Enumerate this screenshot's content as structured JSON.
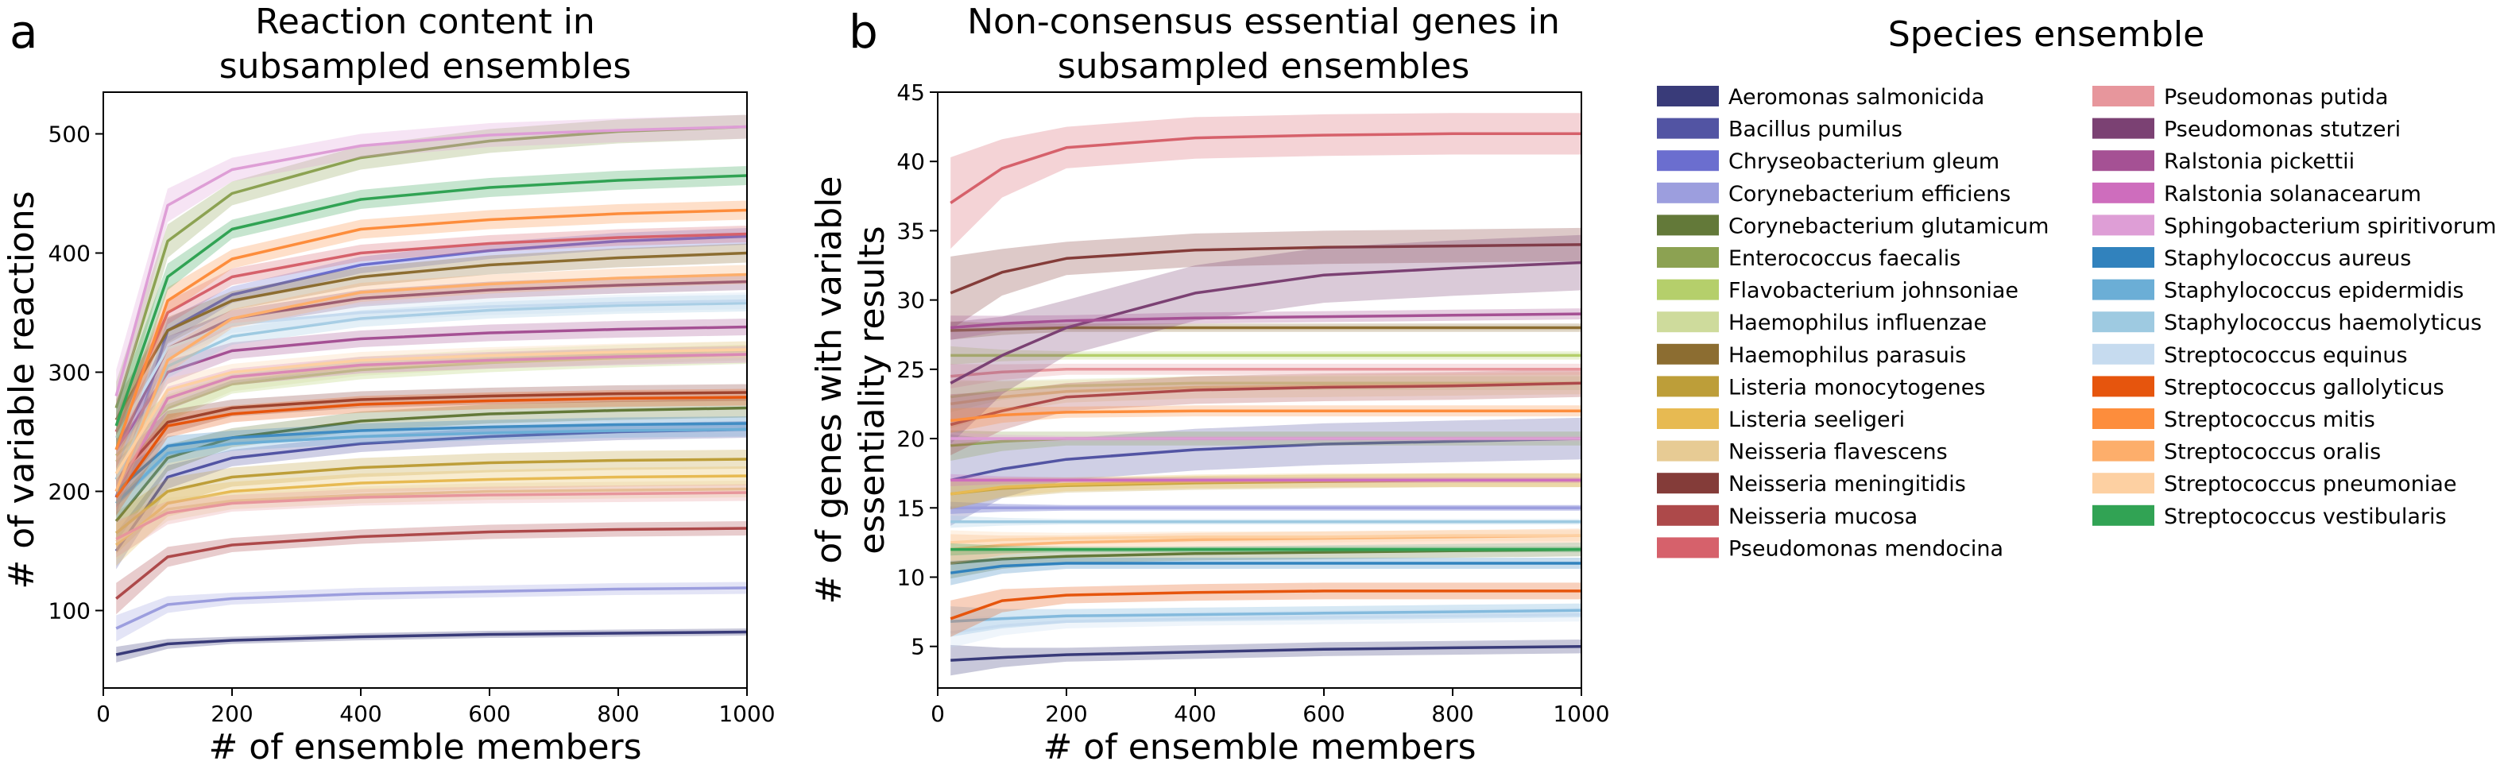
{
  "figure": {
    "legend_title": "Species ensemble"
  },
  "species": [
    {
      "name": "Aeromonas salmonicida",
      "color": "#393b79"
    },
    {
      "name": "Bacillus pumilus",
      "color": "#5254a3"
    },
    {
      "name": "Chryseobacterium gleum",
      "color": "#6b6ecf"
    },
    {
      "name": "Corynebacterium efficiens",
      "color": "#9c9ede"
    },
    {
      "name": "Corynebacterium glutamicum",
      "color": "#637939"
    },
    {
      "name": "Enterococcus faecalis",
      "color": "#8ca252"
    },
    {
      "name": "Flavobacterium johnsoniae",
      "color": "#b5cf6b"
    },
    {
      "name": "Haemophilus influenzae",
      "color": "#cedb9c"
    },
    {
      "name": "Haemophilus parasuis",
      "color": "#8c6d31"
    },
    {
      "name": "Listeria monocytogenes",
      "color": "#bd9e39"
    },
    {
      "name": "Listeria seeligeri",
      "color": "#e7ba52"
    },
    {
      "name": "Neisseria flavescens",
      "color": "#e7cb94"
    },
    {
      "name": "Neisseria meningitidis",
      "color": "#843c39"
    },
    {
      "name": "Neisseria mucosa",
      "color": "#ad494a"
    },
    {
      "name": "Pseudomonas mendocina",
      "color": "#d6616b"
    },
    {
      "name": "Pseudomonas putida",
      "color": "#e7969c"
    },
    {
      "name": "Pseudomonas stutzeri",
      "color": "#7b4173"
    },
    {
      "name": "Ralstonia pickettii",
      "color": "#a55194"
    },
    {
      "name": "Ralstonia solanacearum",
      "color": "#ce6dbd"
    },
    {
      "name": "Sphingobacterium spiritivorum",
      "color": "#de9ed6"
    },
    {
      "name": "Staphylococcus aureus",
      "color": "#3182bd"
    },
    {
      "name": "Staphylococcus epidermidis",
      "color": "#6baed6"
    },
    {
      "name": "Staphylococcus haemolyticus",
      "color": "#9ecae1"
    },
    {
      "name": "Streptococcus equinus",
      "color": "#c6dbef"
    },
    {
      "name": "Streptococcus gallolyticus",
      "color": "#e6550d"
    },
    {
      "name": "Streptococcus mitis",
      "color": "#fd8d3c"
    },
    {
      "name": "Streptococcus oralis",
      "color": "#fdae6b"
    },
    {
      "name": "Streptococcus pneumoniae",
      "color": "#fdd0a2"
    },
    {
      "name": "Streptococcus vestibularis",
      "color": "#31a354"
    }
  ],
  "chart_data": [
    {
      "panel_letter": "a",
      "type": "line",
      "title": "Reaction content in\nsubsampled ensembles",
      "xlabel": "# of ensemble members",
      "ylabel": "# of variable reactions",
      "xlim": [
        0,
        1000
      ],
      "ylim": [
        35,
        535
      ],
      "xticks": [
        0,
        200,
        400,
        600,
        800,
        1000
      ],
      "yticks": [
        100,
        200,
        300,
        400,
        500
      ],
      "grid": false,
      "x": [
        20,
        100,
        200,
        400,
        600,
        800,
        1000
      ],
      "series": [
        {
          "name": "Aeromonas salmonicida",
          "values": [
            63,
            72,
            75,
            78,
            80,
            81,
            82
          ],
          "band": 3
        },
        {
          "name": "Bacillus pumilus",
          "values": [
            150,
            212,
            228,
            240,
            246,
            250,
            252
          ],
          "band": 7
        },
        {
          "name": "Chryseobacterium gleum",
          "values": [
            195,
            335,
            365,
            390,
            402,
            410,
            414
          ],
          "band": 7
        },
        {
          "name": "Corynebacterium efficiens",
          "values": [
            85,
            105,
            110,
            114,
            116,
            118,
            119
          ],
          "band": 5
        },
        {
          "name": "Corynebacterium glutamicum",
          "values": [
            175,
            228,
            245,
            259,
            265,
            268,
            270
          ],
          "band": 8
        },
        {
          "name": "Enterococcus faecalis",
          "values": [
            270,
            410,
            450,
            480,
            494,
            502,
            506
          ],
          "band": 10
        },
        {
          "name": "Flavobacterium johnsoniae",
          "values": [
            230,
            270,
            290,
            302,
            308,
            312,
            315
          ],
          "band": 8
        },
        {
          "name": "Haemophilus influenzae",
          "values": [
            225,
            272,
            292,
            305,
            311,
            315,
            318
          ],
          "band": 8
        },
        {
          "name": "Haemophilus parasuis",
          "values": [
            260,
            335,
            360,
            380,
            390,
            396,
            400
          ],
          "band": 8
        },
        {
          "name": "Listeria monocytogenes",
          "values": [
            165,
            200,
            212,
            220,
            224,
            226,
            227
          ],
          "band": 8
        },
        {
          "name": "Listeria seeligeri",
          "values": [
            155,
            190,
            200,
            207,
            210,
            212,
            213
          ],
          "band": 8
        },
        {
          "name": "Neisseria flavescens",
          "values": [
            158,
            185,
            192,
            197,
            200,
            201,
            202
          ],
          "band": 7
        },
        {
          "name": "Neisseria meningitidis",
          "values": [
            210,
            258,
            270,
            277,
            280,
            282,
            283
          ],
          "band": 7
        },
        {
          "name": "Neisseria mucosa",
          "values": [
            110,
            145,
            155,
            162,
            166,
            168,
            169
          ],
          "band": 6
        },
        {
          "name": "Pseudomonas mendocina",
          "values": [
            250,
            350,
            380,
            400,
            408,
            413,
            416
          ],
          "band": 7
        },
        {
          "name": "Pseudomonas putida",
          "values": [
            160,
            182,
            190,
            195,
            197,
            198,
            199
          ],
          "band": 7
        },
        {
          "name": "Pseudomonas stutzeri",
          "values": [
            235,
            320,
            345,
            362,
            369,
            373,
            376
          ],
          "band": 7
        },
        {
          "name": "Ralstonia pickettii",
          "values": [
            235,
            300,
            318,
            328,
            333,
            336,
            338
          ],
          "band": 7
        },
        {
          "name": "Ralstonia solanacearum",
          "values": [
            200,
            278,
            296,
            306,
            310,
            313,
            315
          ],
          "band": 7
        },
        {
          "name": "Sphingobacterium spiritivorum",
          "values": [
            280,
            440,
            470,
            490,
            499,
            503,
            506
          ],
          "band": 10
        },
        {
          "name": "Staphylococcus aureus",
          "values": [
            200,
            238,
            245,
            251,
            254,
            256,
            257
          ],
          "band": 6
        },
        {
          "name": "Staphylococcus epidermidis",
          "values": [
            190,
            232,
            240,
            246,
            249,
            251,
            252
          ],
          "band": 6
        },
        {
          "name": "Staphylococcus haemolyticus",
          "values": [
            210,
            305,
            330,
            345,
            352,
            356,
            358
          ],
          "band": 7
        },
        {
          "name": "Streptococcus equinus",
          "values": [
            245,
            320,
            340,
            350,
            355,
            358,
            360
          ],
          "band": 7
        },
        {
          "name": "Streptococcus gallolyticus",
          "values": [
            195,
            255,
            265,
            273,
            276,
            278,
            279
          ],
          "band": 7
        },
        {
          "name": "Streptococcus mitis",
          "values": [
            235,
            360,
            395,
            420,
            428,
            433,
            436
          ],
          "band": 8
        },
        {
          "name": "Streptococcus oralis",
          "values": [
            200,
            310,
            345,
            367,
            374,
            379,
            382
          ],
          "band": 8
        },
        {
          "name": "Streptococcus pneumoniae",
          "values": [
            215,
            285,
            300,
            310,
            314,
            317,
            319
          ],
          "band": 7
        },
        {
          "name": "Streptococcus vestibularis",
          "values": [
            255,
            380,
            420,
            445,
            455,
            461,
            465
          ],
          "band": 8
        }
      ]
    },
    {
      "panel_letter": "b",
      "type": "line",
      "title": "Non-consensus essential genes in\nsubsampled ensembles",
      "xlabel": "# of ensemble members",
      "ylabel": "# of genes with variable\nessentiality results",
      "xlim": [
        0,
        1000
      ],
      "ylim": [
        2,
        45
      ],
      "xticks": [
        0,
        200,
        400,
        600,
        800,
        1000
      ],
      "yticks": [
        5,
        10,
        15,
        20,
        25,
        30,
        35,
        40,
        45
      ],
      "grid": false,
      "x": [
        20,
        100,
        200,
        400,
        600,
        800,
        1000
      ],
      "series": [
        {
          "name": "Aeromonas salmonicida",
          "values": [
            4,
            4.2,
            4.4,
            4.6,
            4.8,
            4.9,
            5
          ],
          "band": 0.5
        },
        {
          "name": "Bacillus pumilus",
          "values": [
            17,
            17.8,
            18.5,
            19.2,
            19.6,
            19.8,
            20
          ],
          "band": 1.5
        },
        {
          "name": "Chryseobacterium gleum",
          "values": [
            15,
            15,
            15,
            15,
            15,
            15,
            15
          ],
          "band": 0.2
        },
        {
          "name": "Corynebacterium efficiens",
          "values": [
            15,
            15,
            15,
            15,
            15,
            15,
            15
          ],
          "band": 0.2
        },
        {
          "name": "Corynebacterium glutamicum",
          "values": [
            11,
            11.3,
            11.5,
            11.7,
            11.8,
            11.9,
            12
          ],
          "band": 0.5
        },
        {
          "name": "Enterococcus faecalis",
          "values": [
            19.5,
            19.8,
            20,
            20,
            20,
            20,
            20
          ],
          "band": 0.5
        },
        {
          "name": "Flavobacterium johnsoniae",
          "values": [
            26,
            26,
            26,
            26,
            26,
            26,
            26
          ],
          "band": 0.3
        },
        {
          "name": "Haemophilus influenzae",
          "values": [
            23,
            23.5,
            23.8,
            24,
            24,
            24,
            24
          ],
          "band": 0.5
        },
        {
          "name": "Haemophilus parasuis",
          "values": [
            27.8,
            27.9,
            28,
            28,
            28,
            28,
            28
          ],
          "band": 0.3
        },
        {
          "name": "Listeria monocytogenes",
          "values": [
            16,
            16.4,
            16.6,
            16.8,
            16.9,
            17,
            17
          ],
          "band": 0.5
        },
        {
          "name": "Listeria seeligeri",
          "values": [
            16,
            16.5,
            16.7,
            16.9,
            17,
            17,
            17
          ],
          "band": 0.5
        },
        {
          "name": "Neisseria flavescens",
          "values": [
            22.5,
            23,
            23.4,
            23.7,
            23.8,
            23.9,
            24
          ],
          "band": 0.8
        },
        {
          "name": "Neisseria meningitidis",
          "values": [
            30.5,
            32,
            33,
            33.6,
            33.8,
            33.9,
            34
          ],
          "band": 1.2
        },
        {
          "name": "Neisseria mucosa",
          "values": [
            21,
            22,
            23,
            23.5,
            23.7,
            23.8,
            24
          ],
          "band": 1
        },
        {
          "name": "Pseudomonas mendocina",
          "values": [
            37,
            39.5,
            41,
            41.7,
            41.9,
            42,
            42
          ],
          "band": 1.5
        },
        {
          "name": "Pseudomonas putida",
          "values": [
            24.5,
            24.8,
            25,
            25,
            25,
            25,
            25
          ],
          "band": 0.4
        },
        {
          "name": "Pseudomonas stutzeri",
          "values": [
            24,
            26,
            28,
            30.5,
            31.8,
            32.3,
            32.7
          ],
          "band": 2
        },
        {
          "name": "Ralstonia pickettii",
          "values": [
            28,
            28.3,
            28.5,
            28.7,
            28.8,
            28.9,
            29
          ],
          "band": 0.4
        },
        {
          "name": "Ralstonia solanacearum",
          "values": [
            17,
            17,
            17,
            17,
            17,
            17,
            17
          ],
          "band": 0.2
        },
        {
          "name": "Sphingobacterium spiritivorum",
          "values": [
            20,
            20,
            20,
            20,
            20,
            20,
            20
          ],
          "band": 0.2
        },
        {
          "name": "Staphylococcus aureus",
          "values": [
            10.3,
            10.8,
            11,
            11,
            11,
            11,
            11
          ],
          "band": 0.4
        },
        {
          "name": "Staphylococcus epidermidis",
          "values": [
            6.8,
            7,
            7.2,
            7.3,
            7.4,
            7.5,
            7.6
          ],
          "band": 0.5
        },
        {
          "name": "Staphylococcus haemolyticus",
          "values": [
            14,
            14,
            14,
            14,
            14,
            14,
            14
          ],
          "band": 0.2
        },
        {
          "name": "Streptococcus equinus",
          "values": [
            6,
            6.5,
            6.8,
            7,
            7.1,
            7.2,
            7.3
          ],
          "band": 0.5
        },
        {
          "name": "Streptococcus gallolyticus",
          "values": [
            7,
            8.3,
            8.7,
            8.9,
            9,
            9,
            9
          ],
          "band": 0.6
        },
        {
          "name": "Streptococcus mitis",
          "values": [
            21.3,
            21.7,
            21.9,
            22,
            22,
            22,
            22
          ],
          "band": 0.4
        },
        {
          "name": "Streptococcus oralis",
          "values": [
            12,
            12.3,
            12.5,
            12.7,
            12.8,
            12.9,
            13
          ],
          "band": 0.5
        },
        {
          "name": "Streptococcus pneumoniae",
          "values": [
            12.5,
            12.7,
            12.8,
            12.9,
            12.9,
            13,
            13
          ],
          "band": 0.4
        },
        {
          "name": "Streptococcus vestibularis",
          "values": [
            12,
            12,
            12,
            12,
            12,
            12,
            12
          ],
          "band": 0.2
        }
      ]
    }
  ]
}
